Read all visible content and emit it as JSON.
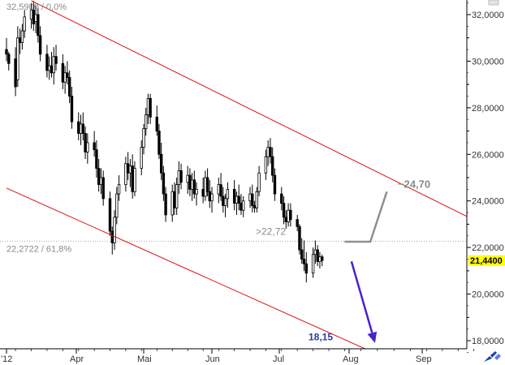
{
  "chart_data": {
    "type": "candlestick",
    "x_ticks": [
      "'12",
      "Apr",
      "Mai",
      "Jun",
      "Jul",
      "Aug",
      "Sep"
    ],
    "y_ticks": [
      "18,0000",
      "20,0000",
      "22,0000",
      "24,0000",
      "26,0000",
      "28,0000",
      "30,0000",
      "32,0000"
    ],
    "ylim": [
      17.5,
      32.6
    ],
    "fibo_levels": [
      {
        "label": "32,5900 / 0,0%",
        "value": 32.59
      },
      {
        "label": "22,2722 / 61,8%",
        "value": 22.2722
      }
    ],
    "current_price": {
      "label": "21,4400",
      "value": 21.44
    },
    "channel": {
      "upper": [
        {
          "date": "2012-03-12",
          "value": 32.6
        },
        {
          "date": "2012-09-30",
          "value": 22.9
        }
      ],
      "lower": [
        {
          "date": "2012-03-01",
          "value": 24.55
        },
        {
          "date": "2012-08-10",
          "value": 17.55
        }
      ]
    },
    "scenarios": [
      {
        "label": "~24,70",
        "target": 24.7,
        "path": [
          {
            "date": "2012-07-30",
            "value": 22.25
          },
          {
            "date": "2012-08-10",
            "value": 22.25
          },
          {
            "date": "2012-08-17",
            "value": 24.4
          }
        ]
      },
      {
        "label": ">22,72",
        "value": 22.72
      },
      {
        "label": "18,15",
        "target": 18.15,
        "path": [
          {
            "date": "2012-08-02",
            "value": 21.4
          },
          {
            "date": "2012-08-12",
            "value": 17.9
          }
        ]
      }
    ],
    "series": [
      {
        "ohlc": [
          [
            30.5,
            31.0,
            30.0,
            30.3
          ],
          [
            30.3,
            30.4,
            29.6,
            29.9
          ],
          [
            30.1,
            30.6,
            28.5,
            28.9
          ],
          [
            29.2,
            31.5,
            28.9,
            31.0
          ],
          [
            31.0,
            31.4,
            30.3,
            30.8
          ],
          [
            30.8,
            31.6,
            30.5,
            31.3
          ],
          [
            31.3,
            32.2,
            31.0,
            31.9
          ],
          [
            31.8,
            32.5,
            31.4,
            32.2
          ],
          [
            32.2,
            32.59,
            31.3,
            31.6
          ],
          [
            31.7,
            32.4,
            31.2,
            32.0
          ],
          [
            32.0,
            32.3,
            30.8,
            31.1
          ],
          [
            31.1,
            31.5,
            30.0,
            30.3
          ],
          [
            30.3,
            30.7,
            29.3,
            29.6
          ],
          [
            29.6,
            30.2,
            29.2,
            29.8
          ],
          [
            29.8,
            30.4,
            29.3,
            29.5
          ],
          [
            29.5,
            30.6,
            29.0,
            30.2
          ],
          [
            30.2,
            30.7,
            29.6,
            29.9
          ],
          [
            29.9,
            30.3,
            28.8,
            29.1
          ],
          [
            29.1,
            29.8,
            28.6,
            29.5
          ],
          [
            29.5,
            30.0,
            29.0,
            29.3
          ],
          [
            29.3,
            29.6,
            28.2,
            28.5
          ],
          [
            28.5,
            28.9,
            27.1,
            27.4
          ],
          [
            27.4,
            27.8,
            26.6,
            26.9
          ],
          [
            26.9,
            27.7,
            26.4,
            27.3
          ],
          [
            27.3,
            27.8,
            26.6,
            26.9
          ],
          [
            26.9,
            27.2,
            25.8,
            26.1
          ],
          [
            26.1,
            26.9,
            25.6,
            26.5
          ],
          [
            26.5,
            27.0,
            25.9,
            26.2
          ],
          [
            26.2,
            26.6,
            25.0,
            25.4
          ],
          [
            25.4,
            25.8,
            24.4,
            24.7
          ],
          [
            24.7,
            25.4,
            24.3,
            25.0
          ],
          [
            25.0,
            25.3,
            23.8,
            24.1
          ],
          [
            24.1,
            24.4,
            22.5,
            22.7
          ],
          [
            22.7,
            22.9,
            21.7,
            22.2
          ],
          [
            22.2,
            23.6,
            21.9,
            23.3
          ],
          [
            23.3,
            24.6,
            23.0,
            24.3
          ],
          [
            24.3,
            25.1,
            24.0,
            24.7
          ],
          [
            24.7,
            25.9,
            24.4,
            25.6
          ],
          [
            25.6,
            26.1,
            24.9,
            25.2
          ],
          [
            25.2,
            25.8,
            24.6,
            25.5
          ],
          [
            25.5,
            26.0,
            24.1,
            24.4
          ],
          [
            24.4,
            25.7,
            24.2,
            25.4
          ],
          [
            25.4,
            26.6,
            25.1,
            26.3
          ],
          [
            26.3,
            27.3,
            26.0,
            27.1
          ],
          [
            27.1,
            28.0,
            26.8,
            27.7
          ],
          [
            27.7,
            28.6,
            27.3,
            28.4
          ],
          [
            28.4,
            28.6,
            27.3,
            27.6
          ],
          [
            27.6,
            28.1,
            26.8,
            27.0
          ],
          [
            27.0,
            27.3,
            25.8,
            26.0
          ],
          [
            26.0,
            26.5,
            24.9,
            25.2
          ],
          [
            25.2,
            25.5,
            24.0,
            24.3
          ],
          [
            24.3,
            24.6,
            23.1,
            23.4
          ],
          [
            23.4,
            24.7,
            23.1,
            24.4
          ],
          [
            24.4,
            24.8,
            23.4,
            23.7
          ],
          [
            23.7,
            25.0,
            23.4,
            24.7
          ],
          [
            24.7,
            25.7,
            24.3,
            25.3
          ],
          [
            25.3,
            25.6,
            24.5,
            24.8
          ],
          [
            24.8,
            25.5,
            24.3,
            25.1
          ],
          [
            25.1,
            25.4,
            24.2,
            24.5
          ],
          [
            24.5,
            25.2,
            24.0,
            24.9
          ],
          [
            24.9,
            25.3,
            24.1,
            24.3
          ],
          [
            24.3,
            24.8,
            23.8,
            24.5
          ],
          [
            24.5,
            25.0,
            23.9,
            24.2
          ],
          [
            24.2,
            25.3,
            24.0,
            25.0
          ],
          [
            25.0,
            25.4,
            24.2,
            24.4
          ],
          [
            24.4,
            24.9,
            23.7,
            24.0
          ],
          [
            24.0,
            24.6,
            23.5,
            24.3
          ],
          [
            24.3,
            25.0,
            23.9,
            24.7
          ],
          [
            24.7,
            25.2,
            24.0,
            24.2
          ],
          [
            24.2,
            24.6,
            23.5,
            23.8
          ],
          [
            23.8,
            24.3,
            23.3,
            24.1
          ],
          [
            24.1,
            24.8,
            23.7,
            24.5
          ],
          [
            24.5,
            24.9,
            23.6,
            23.9
          ],
          [
            23.9,
            24.4,
            23.4,
            24.2
          ],
          [
            24.2,
            24.7,
            23.6,
            23.9
          ],
          [
            23.9,
            24.3,
            23.4,
            23.6
          ],
          [
            23.6,
            24.2,
            23.3,
            24.0
          ],
          [
            24.0,
            24.6,
            23.7,
            24.3
          ],
          [
            24.3,
            24.7,
            23.5,
            23.8
          ],
          [
            23.8,
            24.0,
            23.5,
            23.7
          ],
          [
            23.7,
            24.6,
            23.5,
            24.4
          ],
          [
            24.4,
            25.5,
            24.2,
            25.2
          ],
          [
            25.2,
            26.2,
            24.9,
            25.9
          ],
          [
            25.9,
            26.6,
            25.5,
            26.3
          ],
          [
            26.3,
            26.7,
            25.6,
            25.9
          ],
          [
            25.9,
            26.3,
            24.8,
            25.1
          ],
          [
            25.1,
            25.4,
            24.0,
            24.3
          ],
          [
            24.3,
            24.6,
            23.6,
            23.9
          ],
          [
            23.9,
            24.2,
            23.0,
            23.3
          ],
          [
            23.3,
            23.6,
            22.8,
            23.1
          ],
          [
            23.1,
            23.9,
            22.9,
            23.6
          ],
          [
            23.6,
            23.9,
            22.9,
            23.2
          ],
          [
            23.2,
            23.4,
            22.7,
            22.9
          ],
          [
            22.9,
            23.0,
            21.7,
            21.9
          ],
          [
            21.9,
            22.4,
            21.3,
            21.5
          ],
          [
            21.5,
            22.3,
            21.0,
            21.3
          ],
          [
            21.3,
            21.8,
            20.5,
            20.9
          ],
          [
            20.9,
            22.0,
            20.7,
            21.7
          ],
          [
            21.7,
            22.3,
            21.3,
            21.9
          ],
          [
            21.9,
            22.1,
            21.2,
            21.4
          ],
          [
            21.4,
            21.8,
            21.1,
            21.6
          ],
          [
            21.6,
            21.7,
            21.2,
            21.44
          ]
        ]
      }
    ]
  }
}
